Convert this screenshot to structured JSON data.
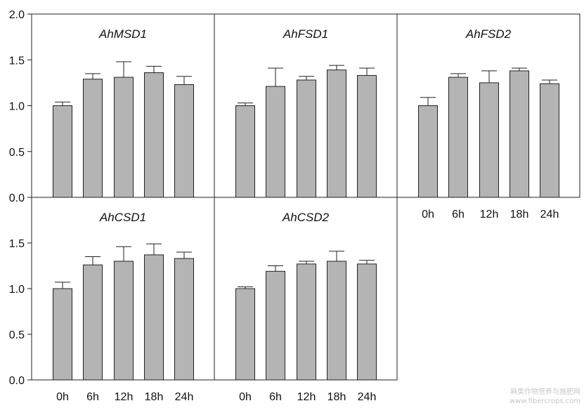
{
  "watermark": {
    "line1": "麻类作物营养与施肥网",
    "line2": "www.fibercrops.com"
  },
  "colors": {
    "bar_fill": "#b4b4b4",
    "bar_stroke": "#222222",
    "frame": "#222222",
    "background": "#ffffff"
  },
  "chart_data": [
    {
      "type": "bar",
      "title": "AhMSD1",
      "categories": [
        "0h",
        "6h",
        "12h",
        "18h",
        "24h"
      ],
      "values": [
        1.0,
        1.29,
        1.31,
        1.36,
        1.23
      ],
      "errors": [
        0.04,
        0.06,
        0.17,
        0.07,
        0.09
      ],
      "ylim": [
        0,
        2.0
      ],
      "yticks": [
        "0.0",
        "0.5",
        "1.0",
        "1.5",
        "2.0"
      ],
      "xlabel": "",
      "ylabel": ""
    },
    {
      "type": "bar",
      "title": "AhFSD1",
      "categories": [
        "0h",
        "6h",
        "12h",
        "18h",
        "24h"
      ],
      "values": [
        1.0,
        1.21,
        1.28,
        1.39,
        1.33
      ],
      "errors": [
        0.03,
        0.2,
        0.04,
        0.05,
        0.08
      ],
      "ylim": [
        0,
        2.0
      ],
      "xlabel": "",
      "ylabel": ""
    },
    {
      "type": "bar",
      "title": "AhFSD2",
      "categories": [
        "0h",
        "6h",
        "12h",
        "18h",
        "24h"
      ],
      "values": [
        1.0,
        1.31,
        1.25,
        1.38,
        1.24
      ],
      "errors": [
        0.09,
        0.04,
        0.13,
        0.03,
        0.04
      ],
      "ylim": [
        0,
        2.0
      ],
      "xticks": [
        "0h",
        "6h",
        "12h",
        "18h",
        "24h"
      ],
      "xlabel": "",
      "ylabel": ""
    },
    {
      "type": "bar",
      "title": "AhCSD1",
      "categories": [
        "0h",
        "6h",
        "12h",
        "18h",
        "24h"
      ],
      "values": [
        1.0,
        1.26,
        1.3,
        1.37,
        1.33
      ],
      "errors": [
        0.07,
        0.09,
        0.16,
        0.12,
        0.07
      ],
      "ylim": [
        0,
        2.0
      ],
      "yticks": [
        "0.0",
        "0.5",
        "1.0",
        "1.5"
      ],
      "xticks": [
        "0h",
        "6h",
        "12h",
        "18h",
        "24h"
      ],
      "xlabel": "",
      "ylabel": ""
    },
    {
      "type": "bar",
      "title": "AhCSD2",
      "categories": [
        "0h",
        "6h",
        "12h",
        "18h",
        "24h"
      ],
      "values": [
        1.0,
        1.19,
        1.27,
        1.3,
        1.27
      ],
      "errors": [
        0.02,
        0.06,
        0.03,
        0.11,
        0.04
      ],
      "ylim": [
        0,
        2.0
      ],
      "xticks": [
        "0h",
        "6h",
        "12h",
        "18h",
        "24h"
      ],
      "xlabel": "",
      "ylabel": ""
    }
  ]
}
